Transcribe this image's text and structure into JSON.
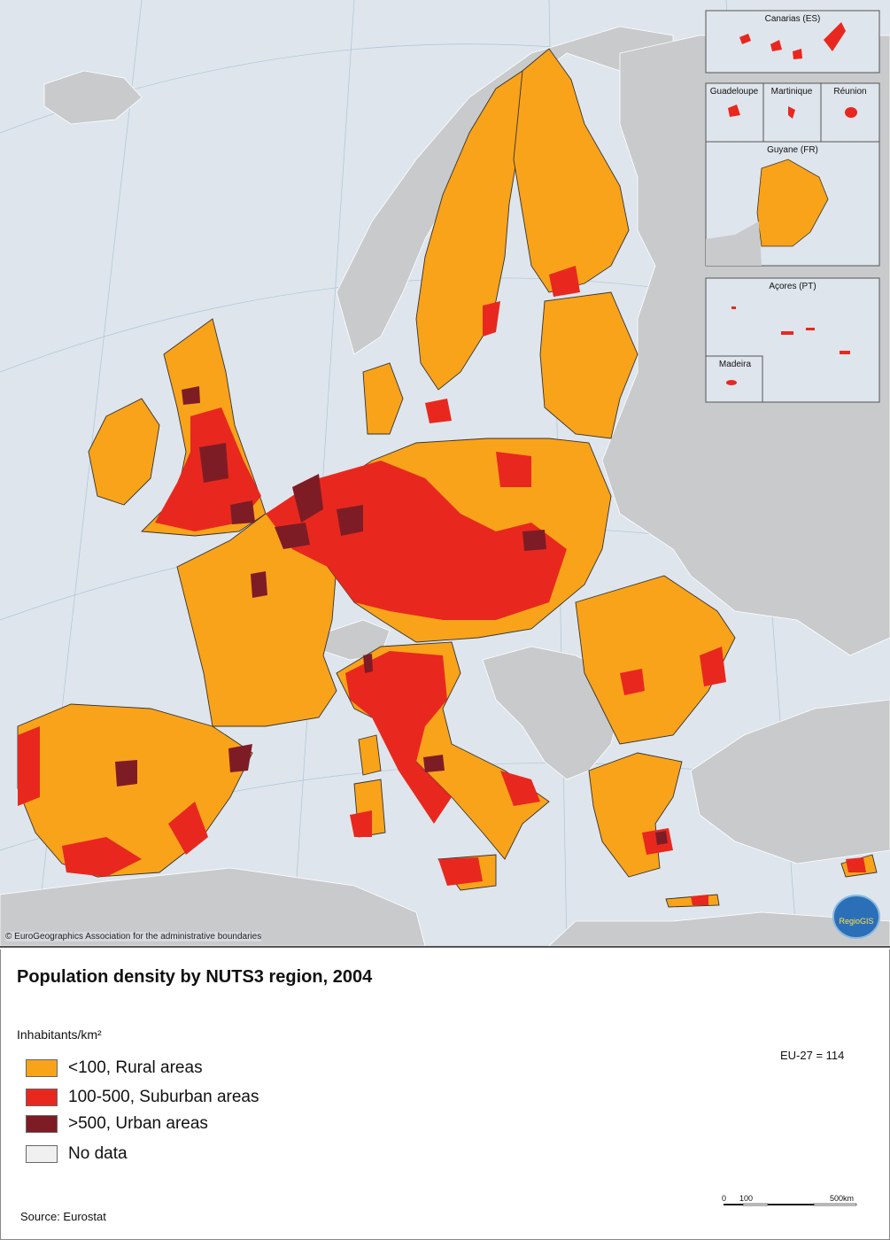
{
  "title": "Population density by NUTS3 region, 2004",
  "unit_label": "Inhabitants/km²",
  "legend": [
    {
      "label": "<100, Rural areas",
      "color": "#f9a31a"
    },
    {
      "label": "100-500, Suburban areas",
      "color": "#e8281e"
    },
    {
      "label": ">500, Urban areas",
      "color": "#7e1c26"
    },
    {
      "label": "No data",
      "color": "#f0f0f0"
    }
  ],
  "eu_average": "EU-27 = 114",
  "source": "Source: Eurostat",
  "copyright": "© EuroGeographics Association for the administrative boundaries",
  "scale": {
    "labels": [
      "0",
      "100",
      "500km"
    ]
  },
  "insets": {
    "canarias": "Canarias (ES)",
    "guadeloupe": "Guadeloupe",
    "martinique": "Martinique",
    "reunion": "Réunion",
    "guyane": "Guyane (FR)",
    "acores": "Açores (PT)",
    "madeira": "Madeira"
  },
  "logo_text": "RegioGIS",
  "colors": {
    "sea": "#dfe5ec",
    "non_eu": "#c8cacc",
    "rural": "#f9a31a",
    "suburban": "#e8281e",
    "urban": "#7e1c26"
  }
}
